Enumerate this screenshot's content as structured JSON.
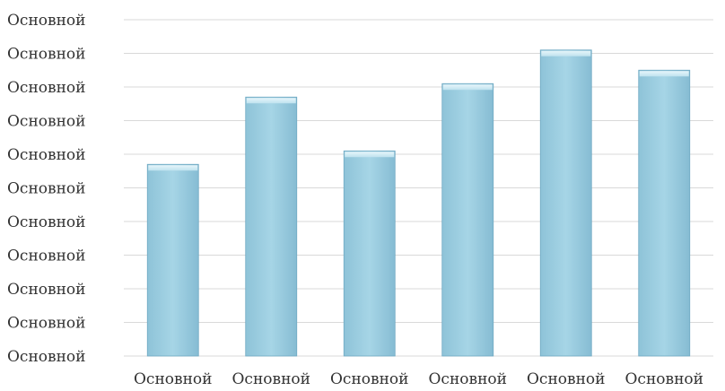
{
  "chart_data": {
    "type": "bar",
    "categories": [
      "Основной",
      "Основной",
      "Основной",
      "Основной",
      "Основной",
      "Основной"
    ],
    "values": [
      5.7,
      7.7,
      6.1,
      8.1,
      9.1,
      8.5
    ],
    "ylim": [
      0,
      10
    ],
    "y_tick_labels": [
      "Основной",
      "Основной",
      "Основной",
      "Основной",
      "Основной",
      "Основной",
      "Основной",
      "Основной",
      "Основной",
      "Основной",
      "Основной"
    ],
    "grid": true,
    "legend": "none",
    "title": "",
    "xlabel": "",
    "ylabel": ""
  },
  "colors": {
    "bar_top": "#cdeaf4",
    "bar_mid": "#9ccfe2",
    "bar_bottom": "#7db7d0",
    "bar_edge": "#6fa9c2",
    "grid": "#d9d9d9"
  }
}
